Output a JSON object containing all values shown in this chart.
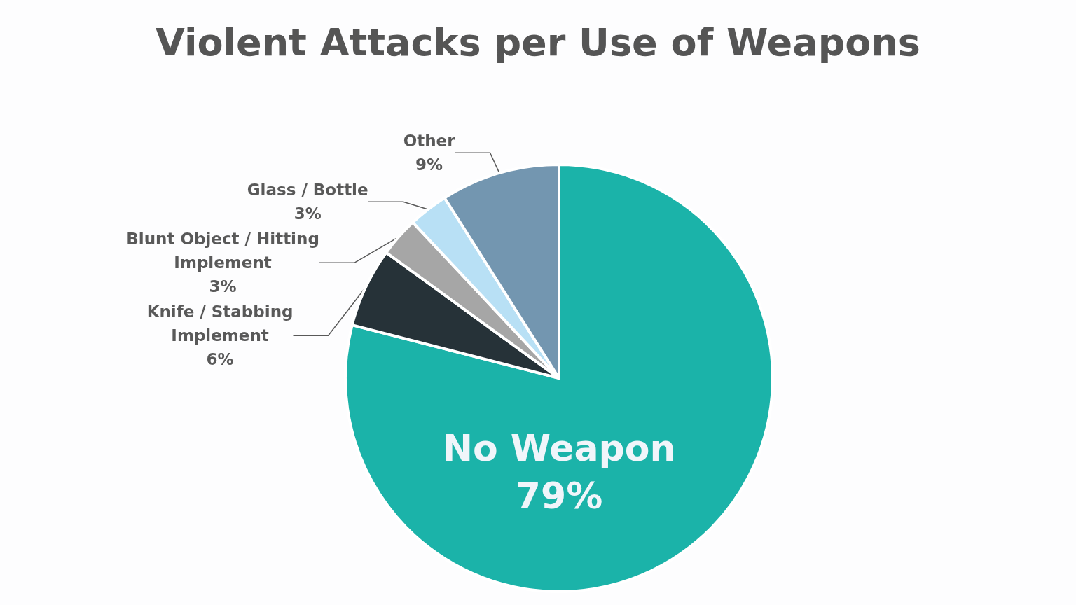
{
  "chart_data": {
    "type": "pie",
    "title": "Violent Attacks per Use of Weapons",
    "categories": [
      "No Weapon",
      "Knife / Stabbing Implement",
      "Blunt Object / Hitting Implement",
      "Glass / Bottle",
      "Other"
    ],
    "values": [
      79,
      6,
      3,
      3,
      9
    ],
    "colors": [
      "#1bb3a9",
      "#263238",
      "#a6a6a6",
      "#b8e0f5",
      "#7396b0"
    ],
    "value_labels": [
      "79%",
      "6%",
      "3%",
      "3%",
      "9%"
    ]
  }
}
